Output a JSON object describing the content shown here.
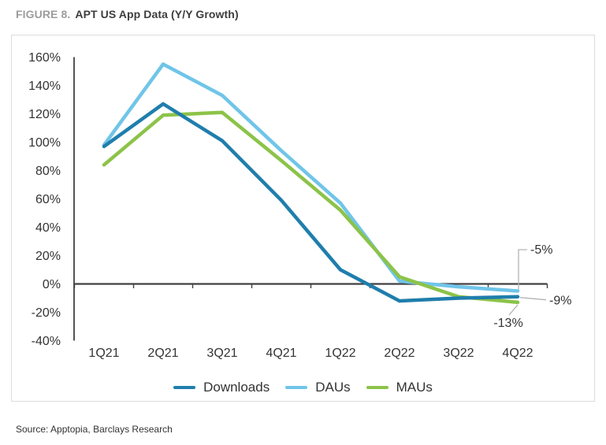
{
  "header": {
    "figure_label": "FIGURE 8.",
    "title": "APT US App Data (Y/Y Growth)"
  },
  "chart_data": {
    "type": "line",
    "categories": [
      "1Q21",
      "2Q21",
      "3Q21",
      "4Q21",
      "1Q22",
      "2Q22",
      "3Q22",
      "4Q22"
    ],
    "series": [
      {
        "name": "Downloads",
        "color": "#1f7eac",
        "values": [
          97,
          127,
          101,
          59,
          10,
          -12,
          -10,
          -9
        ]
      },
      {
        "name": "DAUs",
        "color": "#70c5e8",
        "values": [
          98,
          155,
          133,
          94,
          57,
          2,
          -2,
          -5
        ]
      },
      {
        "name": "MAUs",
        "color": "#8cc349",
        "values": [
          84,
          119,
          121,
          87,
          52,
          5,
          -9,
          -13
        ]
      }
    ],
    "ylim": [
      -40,
      160
    ],
    "ytick_labels": [
      "160%",
      "140%",
      "120%",
      "100%",
      "80%",
      "60%",
      "40%",
      "20%",
      "0%",
      "-20%",
      "-40%"
    ],
    "annotations": [
      {
        "text": "-5%",
        "series": "DAUs"
      },
      {
        "text": "-9%",
        "series": "Downloads"
      },
      {
        "text": "-13%",
        "series": "MAUs"
      }
    ],
    "legend_position": "bottom",
    "grid": false,
    "axis_color": "#404040",
    "label_color": "#333333",
    "connector_color": "#b3b3b3"
  },
  "footer": {
    "source": "Source: Apptopia, Barclays Research"
  }
}
